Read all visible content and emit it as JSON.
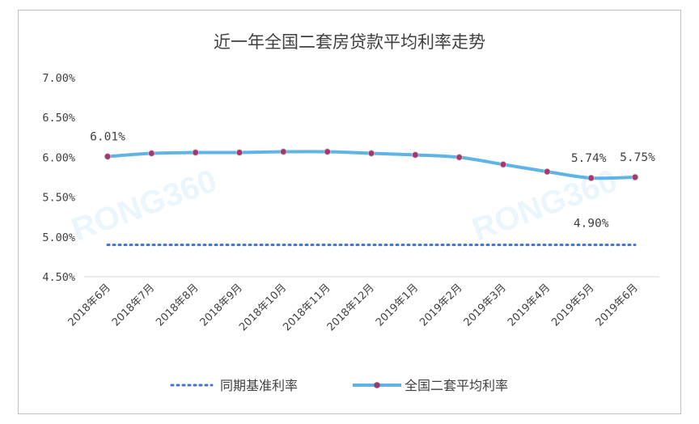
{
  "chart_data": {
    "type": "line",
    "title": "近一年全国二套房贷款平均利率走势",
    "categories": [
      "2018年6月",
      "2018年7月",
      "2018年8月",
      "2018年9月",
      "2018年10月",
      "2018年11月",
      "2018年12月",
      "2019年1月",
      "2019年2月",
      "2019年3月",
      "2019年4月",
      "2019年5月",
      "2019年6月"
    ],
    "y_ticks": [
      "7.00%",
      "6.50%",
      "6.00%",
      "5.50%",
      "5.00%",
      "4.50%"
    ],
    "ylim": [
      4.5,
      7.0
    ],
    "grid": false,
    "legend_position": "bottom",
    "series": [
      {
        "name": "同期基准利率",
        "style": "dotted",
        "color": "#4472c4",
        "values": [
          4.9,
          4.9,
          4.9,
          4.9,
          4.9,
          4.9,
          4.9,
          4.9,
          4.9,
          4.9,
          4.9,
          4.9,
          4.9
        ]
      },
      {
        "name": "全国二套平均利率",
        "style": "solid",
        "color": "#5fb4e6",
        "marker_color": "#9e3a6e",
        "values": [
          6.01,
          6.05,
          6.06,
          6.06,
          6.07,
          6.07,
          6.05,
          6.03,
          6.0,
          5.91,
          5.82,
          5.74,
          5.75
        ]
      }
    ],
    "data_labels": [
      {
        "series": 1,
        "index": 0,
        "text": "6.01%"
      },
      {
        "series": 1,
        "index": 11,
        "text": "5.74%"
      },
      {
        "series": 1,
        "index": 12,
        "text": "5.75%"
      },
      {
        "series": 0,
        "index": 11,
        "text": "4.90%"
      }
    ],
    "watermark": "RONG360"
  }
}
